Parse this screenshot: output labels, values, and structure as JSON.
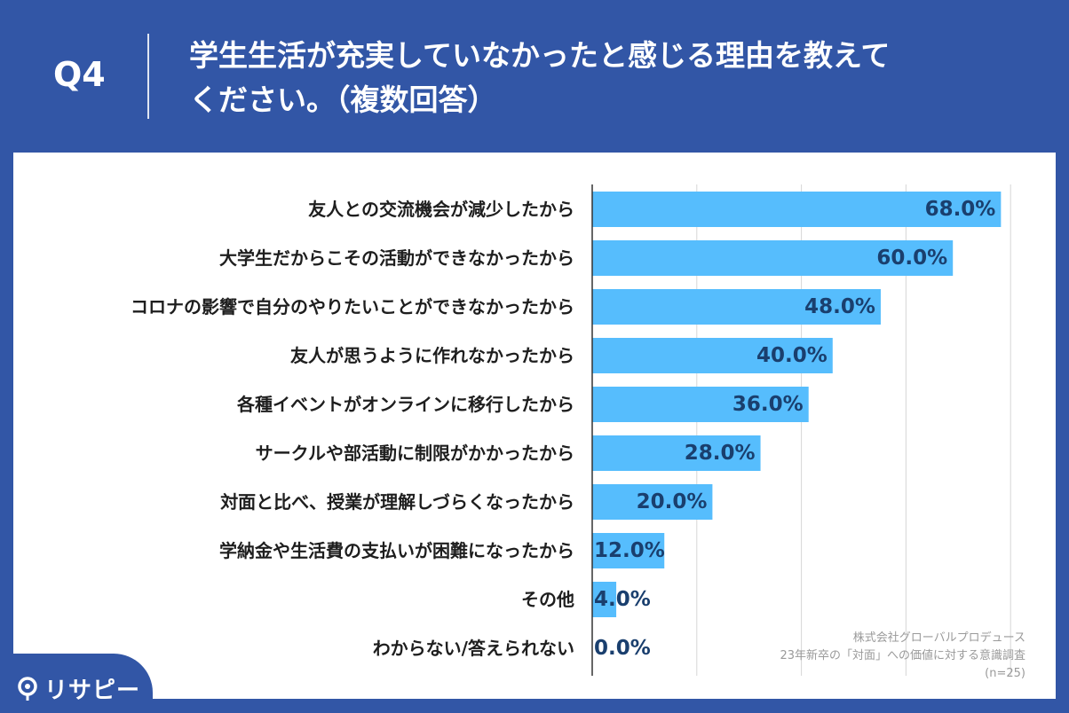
{
  "header": {
    "question_label": "Q4",
    "title_line1": "学生生活が充実していなかったと感じる理由を教えて",
    "title_line2": "ください。（複数回答）"
  },
  "chart_data": {
    "type": "bar",
    "orientation": "horizontal",
    "categories": [
      "友人との交流機会が減少したから",
      "大学生だからこその活動ができなかったから",
      "コロナの影響で自分のやりたいことができなかったから",
      "友人が思うように作れなかったから",
      "各種イベントがオンラインに移行したから",
      "サークルや部活動に制限がかかったから",
      "対面と比べ、授業が理解しづらくなったから",
      "学納金や生活費の支払いが困難になったから",
      "その他",
      "わからない/答えられない"
    ],
    "values": [
      68.0,
      60.0,
      48.0,
      40.0,
      36.0,
      28.0,
      20.0,
      12.0,
      4.0,
      0.0
    ],
    "value_labels": [
      "68.0%",
      "60.0%",
      "48.0%",
      "40.0%",
      "36.0%",
      "28.0%",
      "20.0%",
      "12.0%",
      "4.0%",
      "0.0%"
    ],
    "xlim": [
      0,
      70
    ],
    "grid": true,
    "bar_color": "#56bdfd",
    "label_color": "#1a3f6e"
  },
  "footnote": {
    "line1": "株式会社グローバルプロデュース",
    "line2": "23年新卒の「対面」への価値に対する意識調査",
    "line3": "(n=25)"
  },
  "logo": {
    "text": "リサピー",
    "icon": "pin-icon"
  }
}
